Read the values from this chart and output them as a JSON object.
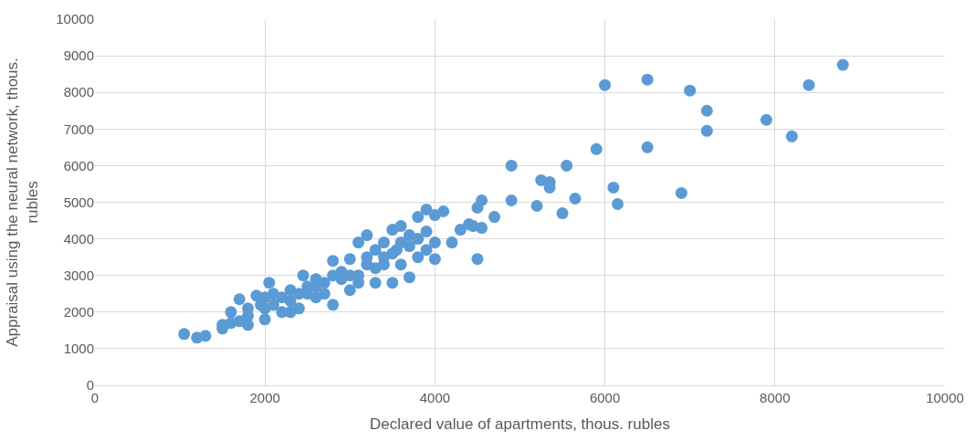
{
  "chart_data": {
    "type": "scatter",
    "xlabel": "Declared value of apartments, thous. rubles",
    "ylabel": "Appraisal using the neural network, thous. rubles",
    "xlim": [
      0,
      10000
    ],
    "xticks": [
      0,
      2000,
      4000,
      6000,
      8000,
      10000
    ],
    "ylim": [
      0,
      10000
    ],
    "yticks": [
      0,
      1000,
      2000,
      3000,
      4000,
      5000,
      6000,
      7000,
      8000,
      9000,
      10000
    ],
    "grid": true,
    "marker": "circle",
    "series": [
      {
        "color": "#5b9bd5",
        "x": [
          1050,
          1200,
          1300,
          1500,
          1500,
          1600,
          1700,
          1700,
          1800,
          1800,
          1900,
          1950,
          2000,
          2000,
          2050,
          2100,
          2200,
          2300,
          2300,
          2400,
          2450,
          2500,
          2600,
          2700,
          2800,
          2800,
          2900,
          3000,
          3000,
          3100,
          3100,
          3200,
          3200,
          3300,
          3400,
          3400,
          3500,
          3500,
          3550,
          3600,
          3600,
          3700,
          3700,
          3800,
          3800,
          3900,
          3900,
          4000,
          4000,
          4000,
          4100,
          4200,
          4300,
          4400,
          4450,
          4500,
          4500,
          4550,
          4550,
          4700,
          4900,
          4900,
          5200,
          5250,
          5350,
          5350,
          5500,
          5550,
          5650,
          5900,
          6000,
          6100,
          6150,
          6500,
          6500,
          6900,
          7000,
          7200,
          7200,
          7900,
          8200,
          8400,
          8800,
          2200,
          2500,
          2700,
          2900,
          3000,
          3200,
          3300,
          3500,
          3600,
          3800,
          2400,
          2600,
          2100,
          1800,
          2800,
          3300,
          3700,
          3900,
          2300,
          2600,
          3100,
          3400,
          2000,
          1600
        ],
        "values": [
          1400,
          1300,
          1350,
          1550,
          1650,
          2000,
          1750,
          2350,
          1650,
          2100,
          2450,
          2200,
          1800,
          2400,
          2800,
          2200,
          2000,
          2600,
          2300,
          2100,
          3000,
          2500,
          2700,
          2500,
          2200,
          3400,
          2900,
          2600,
          3450,
          3000,
          3900,
          4100,
          3300,
          2800,
          3500,
          3900,
          2800,
          4250,
          3700,
          4350,
          3300,
          2950,
          4100,
          4600,
          3500,
          4800,
          3700,
          3900,
          4650,
          3450,
          4750,
          3900,
          4250,
          4400,
          4350,
          3450,
          4850,
          5050,
          4300,
          4600,
          6000,
          5050,
          4900,
          5600,
          5550,
          5400,
          4700,
          6000,
          5100,
          6450,
          8200,
          5400,
          4950,
          8350,
          6500,
          5250,
          8050,
          7500,
          6950,
          7250,
          6800,
          8200,
          8750,
          2400,
          2700,
          2800,
          3100,
          3000,
          3500,
          3200,
          3600,
          3900,
          4000,
          2500,
          2400,
          2500,
          1900,
          3000,
          3700,
          3800,
          4200,
          2000,
          2900,
          2800,
          3300,
          2100,
          1700
        ]
      }
    ]
  }
}
